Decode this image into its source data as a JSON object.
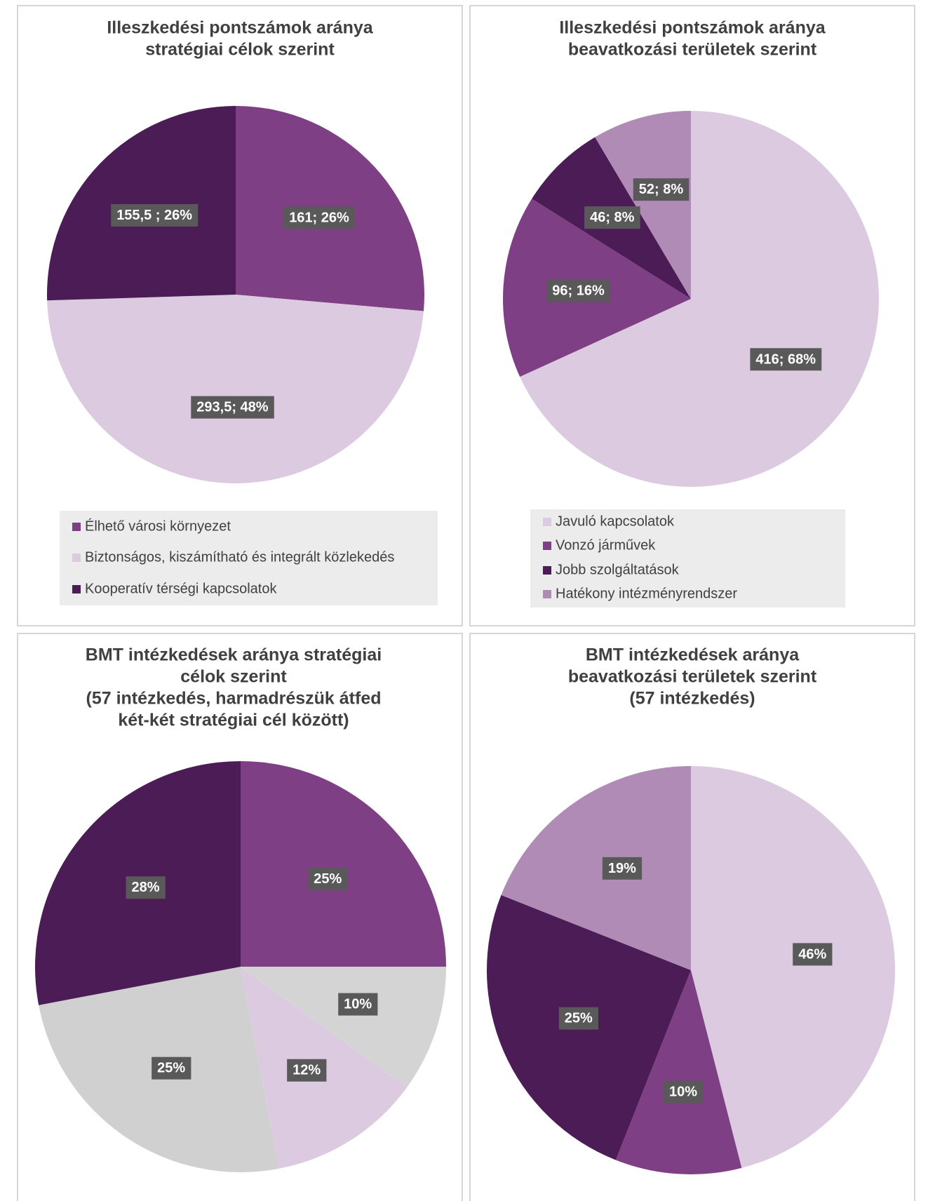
{
  "chart_data": [
    {
      "type": "pie",
      "title": [
        "Illeszkedési pontszámok aránya",
        "stratégiai célok szerint"
      ],
      "categories": [
        "Élhető városi környezet",
        "Biztonságos, kiszámítható és integrált közlekedés",
        "Kooperatív térségi kapcsolatok"
      ],
      "values": [
        161,
        293.5,
        155.5
      ],
      "value_labels": [
        "161; 26%",
        "293,5; 48%",
        "155,5 ; 26%"
      ],
      "colors": [
        "#7f3f84",
        "#dccbe0",
        "#4b1c56"
      ],
      "legend": "bottom"
    },
    {
      "type": "pie",
      "title": [
        "Illeszkedési pontszámok aránya",
        "beavatkozási területek szerint"
      ],
      "categories": [
        "Javuló kapcsolatok",
        "Vonzó járművek",
        "Jobb szolgáltatások",
        "Hatékony intézményrendszer"
      ],
      "values": [
        416,
        96,
        46,
        52
      ],
      "value_labels": [
        "416; 68%",
        "96; 16%",
        "46; 8%",
        "52; 8%"
      ],
      "colors": [
        "#dccbe0",
        "#7f3f84",
        "#4b1c56",
        "#b08bb5"
      ],
      "legend": "bottom"
    },
    {
      "type": "pie",
      "title": [
        "BMT intézkedések aránya stratégiai",
        "célok szerint",
        "(57 intézkedés, harmadrészük átfed",
        "két-két stratégiai cél között)"
      ],
      "values": [
        25,
        10,
        12,
        25,
        28
      ],
      "value_labels": [
        "25%",
        "10%",
        "12%",
        "25%",
        "28%"
      ],
      "colors": [
        "#7f3f84",
        "#d4d4d4",
        "#dccbe0",
        "#d0d0d0",
        "#4b1c56"
      ]
    },
    {
      "type": "pie",
      "title": [
        "BMT intézkedések aránya",
        "beavatkozási területek szerint",
        "(57 intézkedés)"
      ],
      "values": [
        46,
        10,
        25,
        19
      ],
      "value_labels": [
        "46%",
        "10%",
        "25%",
        "19%"
      ],
      "colors": [
        "#dccbe0",
        "#7f3f84",
        "#4b1c56",
        "#b08bb5"
      ]
    }
  ]
}
